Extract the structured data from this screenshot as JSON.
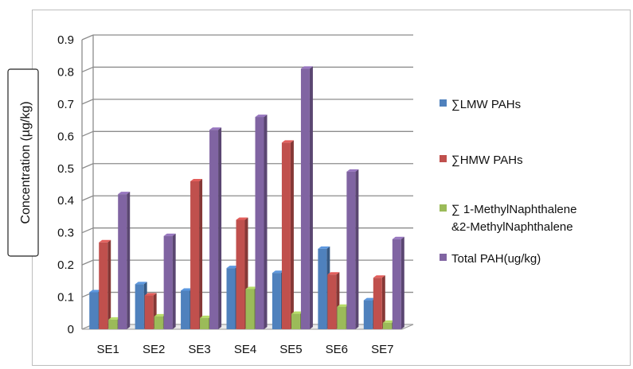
{
  "chart_data": {
    "type": "bar",
    "title": "",
    "ylabel": "Concentration (µg/kg)",
    "xlabel": "",
    "ylim": [
      0,
      0.9
    ],
    "yticks": [
      "0",
      "0.1",
      "0.2",
      "0.3",
      "0.4",
      "0.5",
      "0.6",
      "0.7",
      "0.8",
      "0.9"
    ],
    "categories": [
      "SE1",
      "SE2",
      "SE3",
      "SE4",
      "SE5",
      "SE6",
      "SE7"
    ],
    "grid": true,
    "legend_position": "right",
    "series": [
      {
        "name": "∑LMW PAHs",
        "color": "#4f81bd",
        "values": [
          0.115,
          0.14,
          0.12,
          0.19,
          0.175,
          0.25,
          0.09
        ]
      },
      {
        "name": "∑HMW PAHs",
        "color": "#c0504d",
        "values": [
          0.27,
          0.105,
          0.46,
          0.34,
          0.58,
          0.17,
          0.16
        ]
      },
      {
        "name": "∑ 1-MethylNaphthalene &2-MethylNaphthalene",
        "color": "#9bbb59",
        "values": [
          0.03,
          0.04,
          0.035,
          0.125,
          0.048,
          0.07,
          0.02
        ]
      },
      {
        "name": "Total PAH(ug/kg)",
        "color": "#8064a2",
        "values": [
          0.42,
          0.29,
          0.62,
          0.66,
          0.81,
          0.49,
          0.28
        ]
      }
    ],
    "legend_labels": [
      [
        "∑LMW PAHs"
      ],
      [
        "∑HMW PAHs"
      ],
      [
        "∑ 1-MethylNaphthalene",
        "&2-MethylNaphthalene"
      ],
      [
        "Total PAH(ug/kg)"
      ]
    ]
  }
}
